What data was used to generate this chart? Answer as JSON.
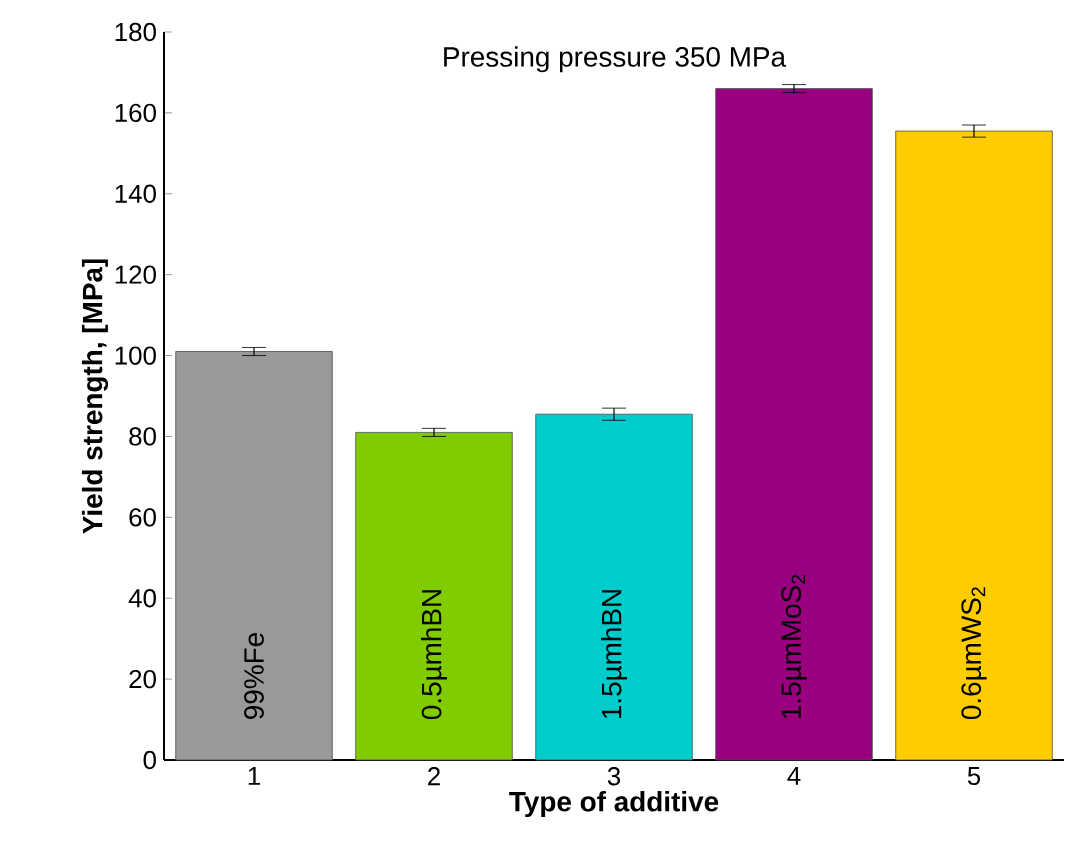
{
  "chart_data": {
    "type": "bar",
    "title": "Pressing pressure 350 MPa",
    "xlabel": "Type of additive",
    "ylabel": "Yield strength, [MPa]",
    "categories": [
      "1",
      "2",
      "3",
      "4",
      "5"
    ],
    "values": [
      101,
      81,
      85.5,
      166,
      155.5
    ],
    "errors": [
      1,
      1,
      1.5,
      1,
      1.5
    ],
    "colors": [
      "#999999",
      "#80cc00",
      "#00cccc",
      "#990080",
      "#ffcc00"
    ],
    "ylim": [
      0,
      180
    ],
    "yticks": [
      0,
      20,
      40,
      60,
      80,
      100,
      120,
      140,
      160,
      180
    ],
    "grid": false,
    "annotations": [
      "99%Fe",
      "0.5µmhBN",
      "1.5µmhBN",
      "1.5µmMoS$_{2}$",
      "0.6µmWS$_{2}$"
    ]
  }
}
